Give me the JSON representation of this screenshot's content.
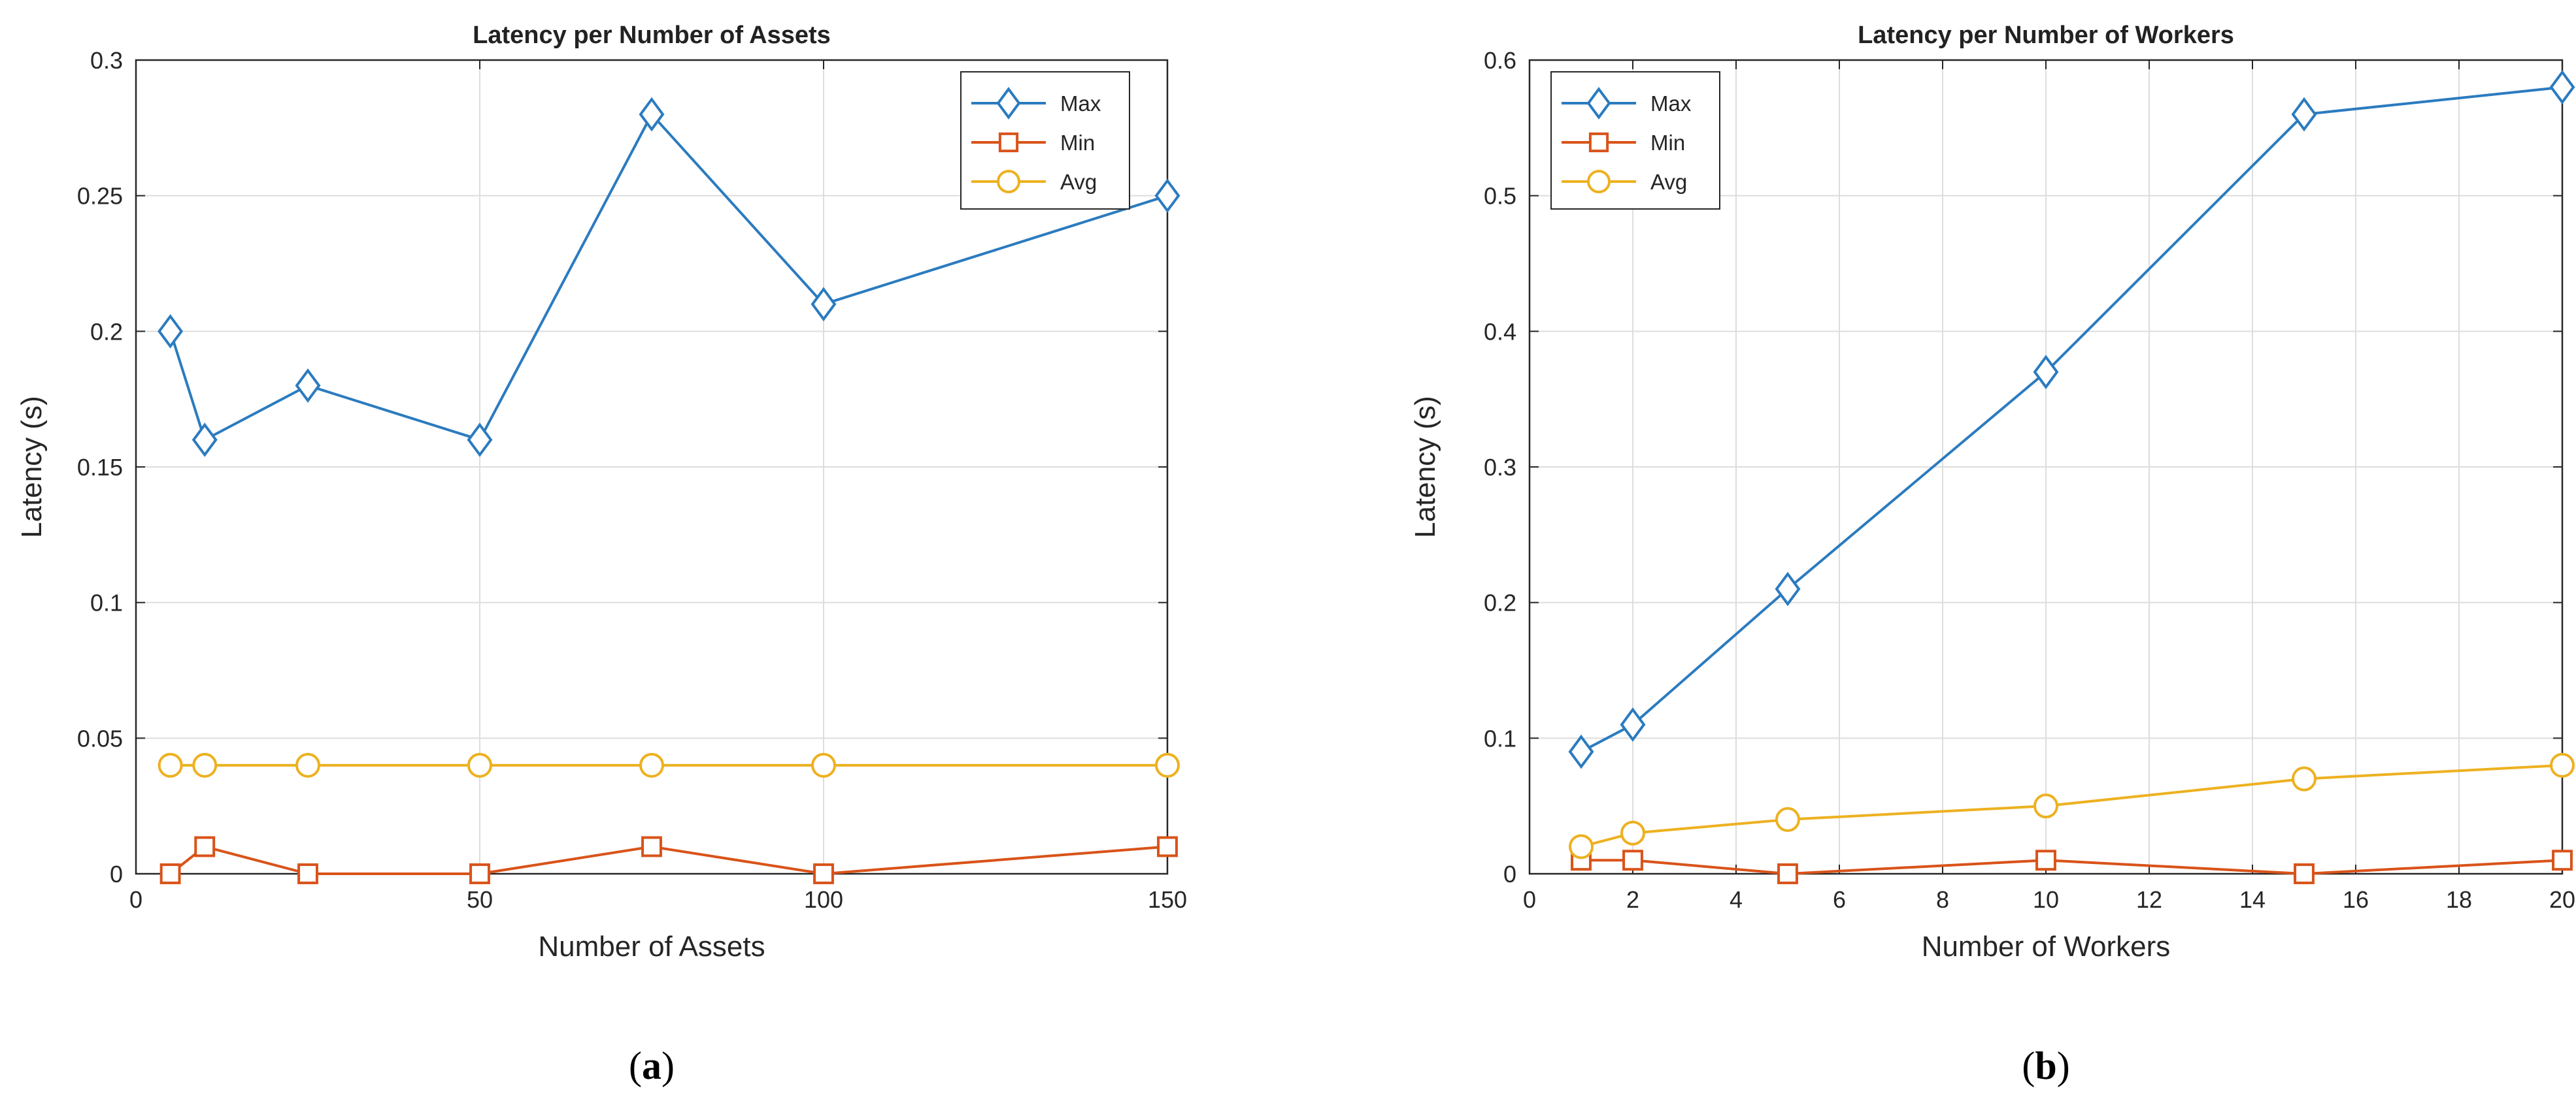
{
  "colors": {
    "max": "#2B7BBF",
    "min": "#D95319",
    "avg": "#EDB120",
    "grid": "#DDDDDD",
    "axis": "#262626"
  },
  "chart_data": [
    {
      "type": "line",
      "title": "Latency per Number of Assets",
      "xlabel": "Number of Assets",
      "ylabel": "Latency (s)",
      "xlim": [
        0,
        150
      ],
      "ylim": [
        0,
        0.3
      ],
      "xticks": [
        0,
        50,
        100,
        150
      ],
      "xtick_labels": [
        "0",
        "50",
        "100",
        "150"
      ],
      "yticks": [
        0,
        0.05,
        0.1,
        0.15,
        0.2,
        0.25,
        0.3
      ],
      "ytick_labels": [
        "0",
        "0.05",
        "0.1",
        "0.15",
        "0.2",
        "0.25",
        "0.3"
      ],
      "xgrid": [
        0,
        50,
        100,
        150
      ],
      "ygrid": [
        0,
        0.05,
        0.1,
        0.15,
        0.2,
        0.25,
        0.3
      ],
      "legend_position": "top-right",
      "x": [
        5,
        10,
        25,
        50,
        75,
        100,
        150
      ],
      "series": [
        {
          "name": "Max",
          "marker": "diamond",
          "color_key": "max",
          "values": [
            0.2,
            0.16,
            0.18,
            0.16,
            0.28,
            0.21,
            0.25
          ]
        },
        {
          "name": "Min",
          "marker": "square",
          "color_key": "min",
          "values": [
            0,
            0.01,
            0,
            0,
            0.01,
            0,
            0.01
          ]
        },
        {
          "name": "Avg",
          "marker": "circle",
          "color_key": "avg",
          "values": [
            0.04,
            0.04,
            0.04,
            0.04,
            0.04,
            0.04,
            0.04
          ]
        }
      ],
      "caption_letter": "a"
    },
    {
      "type": "line",
      "title": "Latency per Number of Workers",
      "xlabel": "Number of Workers",
      "ylabel": "Latency (s)",
      "xlim": [
        0,
        20
      ],
      "ylim": [
        0,
        0.6
      ],
      "xticks": [
        0,
        2,
        4,
        6,
        8,
        10,
        12,
        14,
        16,
        18,
        20
      ],
      "xtick_labels": [
        "0",
        "2",
        "4",
        "6",
        "8",
        "10",
        "12",
        "14",
        "16",
        "18",
        "20"
      ],
      "yticks": [
        0,
        0.1,
        0.2,
        0.3,
        0.4,
        0.5,
        0.6
      ],
      "ytick_labels": [
        "0",
        "0.1",
        "0.2",
        "0.3",
        "0.4",
        "0.5",
        "0.6"
      ],
      "xgrid": [
        0,
        2,
        4,
        6,
        8,
        10,
        12,
        14,
        16,
        18,
        20
      ],
      "ygrid": [
        0,
        0.1,
        0.2,
        0.3,
        0.4,
        0.5,
        0.6
      ],
      "legend_position": "top-left",
      "x": [
        1,
        2,
        5,
        10,
        15,
        20
      ],
      "series": [
        {
          "name": "Max",
          "marker": "diamond",
          "color_key": "max",
          "values": [
            0.09,
            0.11,
            0.21,
            0.37,
            0.56,
            0.58
          ]
        },
        {
          "name": "Min",
          "marker": "square",
          "color_key": "min",
          "values": [
            0.01,
            0.01,
            0,
            0.01,
            0,
            0.01
          ]
        },
        {
          "name": "Avg",
          "marker": "circle",
          "color_key": "avg",
          "values": [
            0.02,
            0.03,
            0.04,
            0.05,
            0.07,
            0.08
          ]
        }
      ],
      "caption_letter": "b"
    }
  ]
}
